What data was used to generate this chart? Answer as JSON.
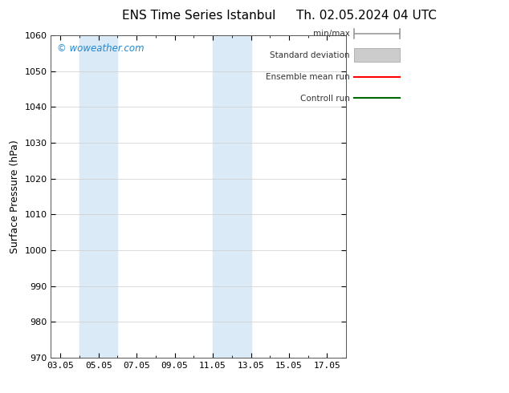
{
  "title_left": "ENS Time Series Istanbul",
  "title_right": "Th. 02.05.2024 04 UTC",
  "ylabel": "Surface Pressure (hPa)",
  "ylim": [
    970,
    1060
  ],
  "yticks": [
    970,
    980,
    990,
    1000,
    1010,
    1020,
    1030,
    1040,
    1050,
    1060
  ],
  "xtick_labels": [
    "03.05",
    "05.05",
    "07.05",
    "09.05",
    "11.05",
    "13.05",
    "15.05",
    "17.05"
  ],
  "xtick_positions": [
    3,
    5,
    7,
    9,
    11,
    13,
    15,
    17
  ],
  "xlim": [
    2.5,
    18.0
  ],
  "shaded_bands": [
    {
      "xstart": 4.0,
      "xend": 6.0
    },
    {
      "xstart": 11.0,
      "xend": 13.0
    }
  ],
  "shaded_color": "#daeaf7",
  "grid_color": "#cccccc",
  "background_color": "#ffffff",
  "watermark_text": "© woweather.com",
  "watermark_color": "#2288cc",
  "legend_labels": [
    "min/max",
    "Standard deviation",
    "Ensemble mean run",
    "Controll run"
  ],
  "legend_colors_line": [
    "#999999",
    "#cccccc",
    "#ff0000",
    "#006600"
  ],
  "tick_fontsize": 8,
  "label_fontsize": 9,
  "title_fontsize": 11
}
